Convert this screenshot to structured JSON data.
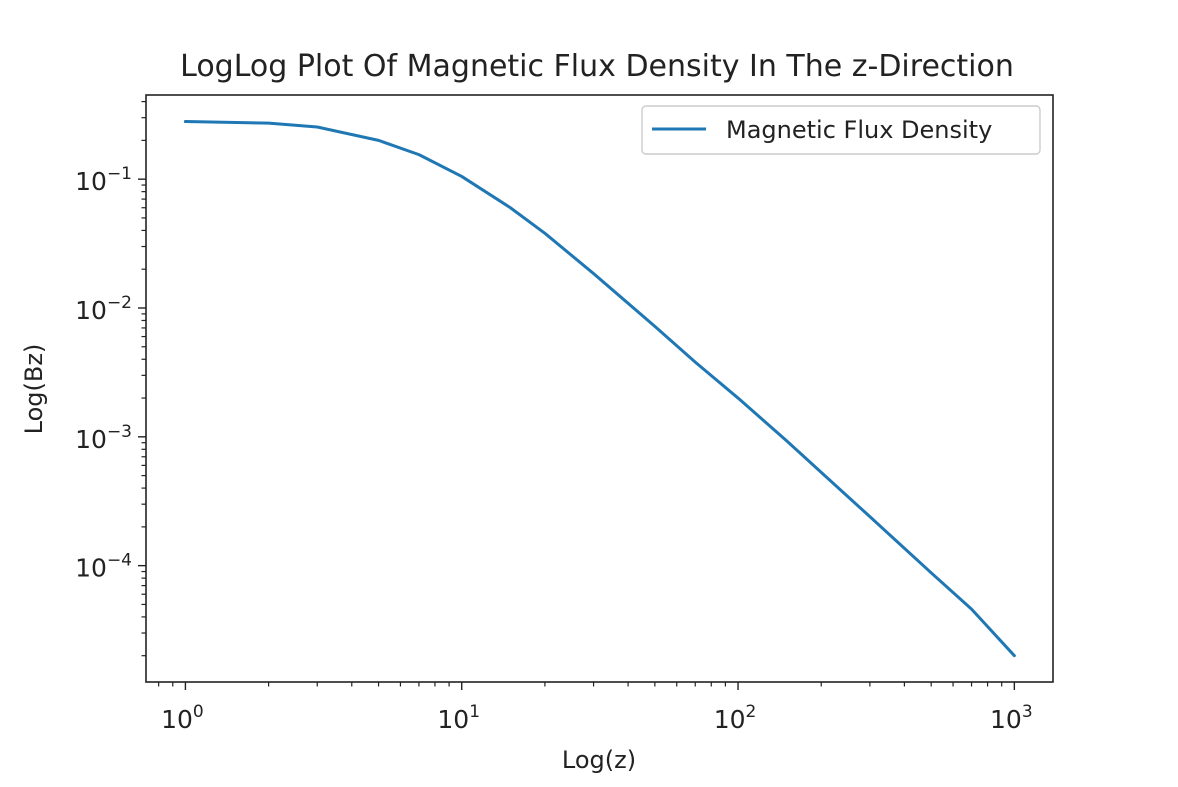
{
  "chart_data": {
    "type": "line",
    "title": "LogLog Plot Of Magnetic Flux Density In The z-Direction",
    "xlabel": "Log(z)",
    "ylabel": "Log(Bz)",
    "x_scale": "log",
    "y_scale": "log",
    "xlim": [
      0.72,
      1380
    ],
    "ylim": [
      1.25e-05,
      0.45
    ],
    "grid": false,
    "legend_position": "upper right",
    "x_ticks": [
      {
        "value": 1,
        "base": "10",
        "exp": "0"
      },
      {
        "value": 10,
        "base": "10",
        "exp": "1"
      },
      {
        "value": 100,
        "base": "10",
        "exp": "2"
      },
      {
        "value": 1000,
        "base": "10",
        "exp": "3"
      }
    ],
    "y_ticks": [
      {
        "value": 0.1,
        "base": "10",
        "exp": "−1"
      },
      {
        "value": 0.01,
        "base": "10",
        "exp": "−2"
      },
      {
        "value": 0.001,
        "base": "10",
        "exp": "−3"
      },
      {
        "value": 0.0001,
        "base": "10",
        "exp": "−4"
      }
    ],
    "series": [
      {
        "name": "Magnetic Flux Density",
        "color": "#1f77b4",
        "x": [
          1,
          2,
          3,
          5,
          7,
          10,
          15,
          20,
          30,
          50,
          70,
          100,
          150,
          200,
          300,
          500,
          700,
          1000
        ],
        "y": [
          0.28,
          0.272,
          0.254,
          0.2,
          0.155,
          0.105,
          0.06,
          0.038,
          0.0185,
          0.0072,
          0.0038,
          0.002,
          0.00093,
          0.00053,
          0.00024,
          8.8e-05,
          4.6e-05,
          2e-05
        ]
      }
    ]
  }
}
